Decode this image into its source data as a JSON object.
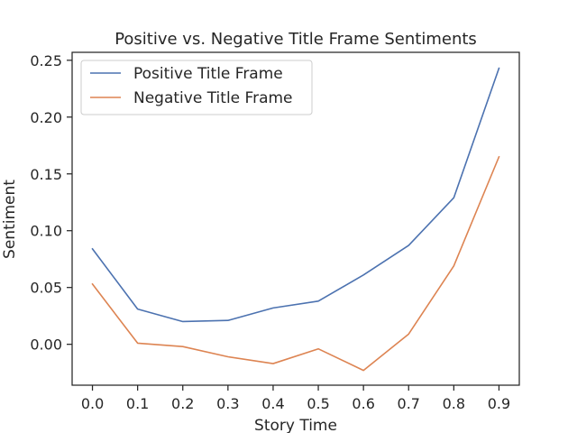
{
  "chart_data": {
    "type": "line",
    "title": "Positive vs. Negative Title Frame Sentiments",
    "xlabel": "Story Time",
    "ylabel": "Sentiment",
    "x": [
      0.0,
      0.1,
      0.2,
      0.3,
      0.4,
      0.5,
      0.6,
      0.7,
      0.8,
      0.9
    ],
    "xticks": [
      "0.0",
      "0.1",
      "0.2",
      "0.3",
      "0.4",
      "0.5",
      "0.6",
      "0.7",
      "0.8",
      "0.9"
    ],
    "yticks": [
      "0.00",
      "0.05",
      "0.10",
      "0.15",
      "0.20",
      "0.25"
    ],
    "ytick_values": [
      0.0,
      0.05,
      0.1,
      0.15,
      0.2,
      0.25
    ],
    "xlim": [
      -0.045,
      0.945
    ],
    "ylim": [
      -0.036,
      0.257
    ],
    "grid": false,
    "legend_position": "top-left",
    "series": [
      {
        "name": "Positive Title Frame",
        "color": "#4c72b0",
        "values": [
          0.084,
          0.031,
          0.02,
          0.021,
          0.032,
          0.038,
          0.061,
          0.087,
          0.129,
          0.243
        ]
      },
      {
        "name": "Negative Title Frame",
        "color": "#dd8452",
        "values": [
          0.053,
          0.001,
          -0.002,
          -0.011,
          -0.017,
          -0.004,
          -0.023,
          0.009,
          0.069,
          0.165
        ]
      }
    ]
  }
}
